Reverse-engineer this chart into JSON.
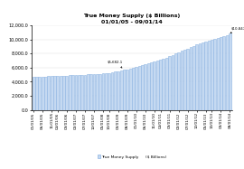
{
  "title": "True Money Supply ($ Billions)\n01/01/05 - 09/01/14",
  "legend_labels": [
    "True Money Supply",
    "($ Billions)"
  ],
  "bar_color": "#c5d9f1",
  "bar_edge_color": "#8db4e2",
  "background_color": "#ffffff",
  "ylim": [
    0,
    12000
  ],
  "yticks": [
    0,
    2000,
    4000,
    6000,
    8000,
    10000,
    12000
  ],
  "annotation1_text": "$5,682.1",
  "annotation2_text": "$10,847",
  "xtick_labels": [
    "01/01/05",
    "06/01/05",
    "11/01/05",
    "04/01/06",
    "09/01/06",
    "02/01/07",
    "07/01/07",
    "12/01/07",
    "05/01/08",
    "10/01/08",
    "03/01/09",
    "08/01/09",
    "01/01/10",
    "06/01/10",
    "11/01/10",
    "04/01/11",
    "09/01/11",
    "02/01/12",
    "07/01/12",
    "12/01/12",
    "05/01/13",
    "10/01/13",
    "03/01/14",
    "08/01/14"
  ],
  "bar_values": [
    4680,
    4700,
    4710,
    4720,
    4730,
    4760,
    4780,
    4800,
    4820,
    4840,
    4860,
    4880,
    4900,
    4920,
    4940,
    4960,
    4980,
    5000,
    5020,
    5050,
    5080,
    5110,
    5140,
    5170,
    5210,
    5260,
    5320,
    5400,
    5500,
    5580,
    5682,
    5760,
    5860,
    5980,
    6100,
    6220,
    6350,
    6480,
    6600,
    6720,
    6850,
    6980,
    7120,
    7280,
    7450,
    7620,
    7800,
    7980,
    8160,
    8350,
    8530,
    8720,
    8900,
    9080,
    9260,
    9440,
    9600,
    9740,
    9870,
    9980,
    10080,
    10180,
    10300,
    10430,
    10580,
    10847
  ]
}
